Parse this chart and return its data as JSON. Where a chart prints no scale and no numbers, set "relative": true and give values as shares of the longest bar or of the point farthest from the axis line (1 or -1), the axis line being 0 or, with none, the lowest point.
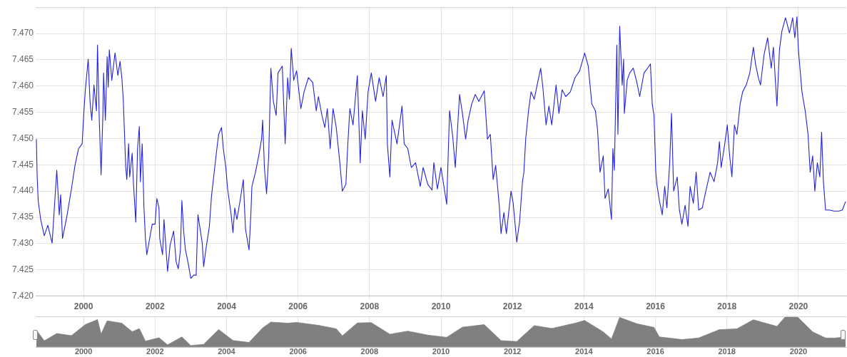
{
  "chart_data": [
    {
      "type": "line",
      "xlim": [
        1998.66,
        2021.34
      ],
      "xticks": [
        2000,
        2002,
        2004,
        2006,
        2008,
        2010,
        2012,
        2014,
        2016,
        2018,
        2020
      ],
      "ylim": [
        7.42,
        7.475
      ],
      "yticks": [
        {
          "value": 7.42,
          "label": "7.420"
        },
        {
          "value": 7.425,
          "label": "7.425"
        },
        {
          "value": 7.43,
          "label": "7.430"
        },
        {
          "value": 7.435,
          "label": "7.435"
        },
        {
          "value": 7.44,
          "label": "7.440"
        },
        {
          "value": 7.445,
          "label": "7.445"
        },
        {
          "value": 7.45,
          "label": "7.450"
        },
        {
          "value": 7.455,
          "label": "7.455"
        },
        {
          "value": 7.46,
          "label": "7.460"
        },
        {
          "value": 7.465,
          "label": "7.465"
        },
        {
          "value": 7.47,
          "label": "7.470"
        }
      ],
      "grid": true,
      "series": [
        {
          "color": "#2222e0",
          "x": [
            1998.68,
            1998.7,
            1998.73,
            1998.8,
            1998.9,
            1999.0,
            1999.12,
            1999.25,
            1999.32,
            1999.36,
            1999.41,
            1999.53,
            1999.66,
            1999.76,
            1999.86,
            1999.96,
            2000.01,
            2000.05,
            2000.13,
            2000.18,
            2000.23,
            2000.29,
            2000.36,
            2000.39,
            2000.44,
            2000.49,
            2000.54,
            2000.56,
            2000.61,
            2000.66,
            2000.69,
            2000.72,
            2000.79,
            2000.88,
            2000.96,
            2001.02,
            2001.07,
            2001.11,
            2001.18,
            2001.21,
            2001.26,
            2001.29,
            2001.36,
            2001.39,
            2001.44,
            2001.46,
            2001.51,
            2001.56,
            2001.59,
            2001.64,
            2001.69,
            2001.73,
            2001.77,
            2001.85,
            2001.92,
            2002.0,
            2002.05,
            2002.11,
            2002.13,
            2002.21,
            2002.25,
            2002.35,
            2002.42,
            2002.52,
            2002.59,
            2002.65,
            2002.71,
            2002.75,
            2002.8,
            2002.85,
            2002.92,
            2003.0,
            2003.08,
            2003.15,
            2003.2,
            2003.25,
            2003.32,
            2003.36,
            2003.42,
            2003.52,
            2003.58,
            2003.67,
            2003.73,
            2003.78,
            2003.86,
            2003.91,
            2003.98,
            2004.03,
            2004.13,
            2004.18,
            2004.23,
            2004.29,
            2004.38,
            2004.47,
            2004.53,
            2004.63,
            2004.68,
            2004.71,
            2004.81,
            2004.9,
            2004.98,
            2005.01,
            2005.06,
            2005.12,
            2005.18,
            2005.24,
            2005.31,
            2005.39,
            2005.44,
            2005.56,
            2005.64,
            2005.71,
            2005.76,
            2005.81,
            2005.88,
            2005.96,
            2006.08,
            2006.17,
            2006.29,
            2006.41,
            2006.51,
            2006.57,
            2006.67,
            2006.75,
            2006.82,
            2006.9,
            2006.98,
            2007.07,
            2007.17,
            2007.24,
            2007.34,
            2007.39,
            2007.45,
            2007.54,
            2007.66,
            2007.74,
            2007.8,
            2007.88,
            2007.96,
            2008.05,
            2008.17,
            2008.27,
            2008.38,
            2008.47,
            2008.5,
            2008.57,
            2008.63,
            2008.77,
            2008.91,
            2008.97,
            2009.07,
            2009.17,
            2009.29,
            2009.42,
            2009.5,
            2009.63,
            2009.75,
            2009.8,
            2009.9,
            2010.0,
            2010.16,
            2010.24,
            2010.33,
            2010.4,
            2010.52,
            2010.6,
            2010.69,
            2010.76,
            2010.86,
            2010.96,
            2011.06,
            2011.21,
            2011.3,
            2011.38,
            2011.46,
            2011.53,
            2011.63,
            2011.68,
            2011.76,
            2011.83,
            2011.96,
            2012.02,
            2012.12,
            2012.2,
            2012.28,
            2012.32,
            2012.37,
            2012.45,
            2012.52,
            2012.61,
            2012.69,
            2012.79,
            2012.85,
            2012.94,
            2013.02,
            2013.1,
            2013.22,
            2013.3,
            2013.39,
            2013.49,
            2013.62,
            2013.75,
            2013.88,
            2014.02,
            2014.12,
            2014.22,
            2014.32,
            2014.38,
            2014.45,
            2014.54,
            2014.59,
            2014.68,
            2014.77,
            2014.81,
            2014.85,
            2014.92,
            2014.95,
            2015.0,
            2015.07,
            2015.11,
            2015.13,
            2015.21,
            2015.28,
            2015.38,
            2015.48,
            2015.56,
            2015.68,
            2015.78,
            2015.86,
            2015.91,
            2015.96,
            2016.01,
            2016.04,
            2016.11,
            2016.19,
            2016.26,
            2016.32,
            2016.4,
            2016.45,
            2016.51,
            2016.61,
            2016.67,
            2016.74,
            2016.83,
            2016.91,
            2016.97,
            2017.06,
            2017.14,
            2017.21,
            2017.31,
            2017.41,
            2017.53,
            2017.64,
            2017.74,
            2017.79,
            2017.84,
            2017.94,
            2018.01,
            2018.07,
            2018.14,
            2018.21,
            2018.28,
            2018.37,
            2018.44,
            2018.54,
            2018.64,
            2018.74,
            2018.8,
            2018.88,
            2018.94,
            2019.04,
            2019.14,
            2019.24,
            2019.3,
            2019.4,
            2019.47,
            2019.54,
            2019.64,
            2019.75,
            2019.84,
            2019.9,
            2019.96,
            2020.0,
            2020.1,
            2020.19,
            2020.27,
            2020.33,
            2020.4,
            2020.46,
            2020.53,
            2020.6,
            2020.65,
            2020.7,
            2020.76,
            2020.86,
            2021.0,
            2021.13,
            2021.23,
            2021.32
          ],
          "values": [
            7.4499,
            7.4431,
            7.4382,
            7.4346,
            7.4315,
            7.4335,
            7.4301,
            7.444,
            7.4355,
            7.4393,
            7.431,
            7.4351,
            7.4404,
            7.4449,
            7.4481,
            7.449,
            7.4553,
            7.4593,
            7.4651,
            7.4571,
            7.4535,
            7.4602,
            7.4553,
            7.4678,
            7.4535,
            7.4431,
            7.4544,
            7.4625,
            7.4535,
            7.4656,
            7.4598,
            7.4669,
            7.4611,
            7.4663,
            7.462,
            7.4647,
            7.4616,
            7.4575,
            7.4445,
            7.4422,
            7.449,
            7.4427,
            7.4472,
            7.4422,
            7.4364,
            7.4341,
            7.4481,
            7.4523,
            7.4418,
            7.449,
            7.4368,
            7.431,
            7.4279,
            7.431,
            7.4337,
            7.4337,
            7.4386,
            7.4368,
            7.431,
            7.4279,
            7.4346,
            7.4247,
            7.4297,
            7.4324,
            7.4265,
            7.4252,
            7.4288,
            7.4382,
            7.4324,
            7.4288,
            7.4265,
            7.4234,
            7.424,
            7.424,
            7.4355,
            7.4333,
            7.4301,
            7.4256,
            7.4288,
            7.4333,
            7.4391,
            7.4445,
            7.4481,
            7.4508,
            7.4521,
            7.4481,
            7.4445,
            7.4404,
            7.4355,
            7.4321,
            7.4368,
            7.4346,
            7.4382,
            7.4422,
            7.4328,
            7.4288,
            7.4355,
            7.4409,
            7.4436,
            7.4467,
            7.4499,
            7.4535,
            7.4445,
            7.4395,
            7.4467,
            7.4634,
            7.4571,
            7.4544,
            7.4625,
            7.4638,
            7.449,
            7.4616,
            7.4575,
            7.4672,
            7.4611,
            7.4629,
            7.4557,
            7.4589,
            7.4616,
            7.4607,
            7.4553,
            7.458,
            7.4544,
            7.4521,
            7.4557,
            7.4481,
            7.4557,
            7.4521,
            7.4454,
            7.44,
            7.4413,
            7.4485,
            7.4557,
            7.4526,
            7.462,
            7.4454,
            7.4553,
            7.4499,
            7.4589,
            7.4625,
            7.4571,
            7.4616,
            7.458,
            7.462,
            7.449,
            7.4427,
            7.4535,
            7.449,
            7.4562,
            7.449,
            7.4481,
            7.4445,
            7.4454,
            7.4409,
            7.4445,
            7.4413,
            7.4402,
            7.4454,
            7.4404,
            7.4445,
            7.4375,
            7.4553,
            7.4503,
            7.4445,
            7.4584,
            7.4548,
            7.4499,
            7.4535,
            7.4566,
            7.4584,
            7.4571,
            7.4591,
            7.4499,
            7.4508,
            7.4422,
            7.4449,
            7.4373,
            7.4319,
            7.4359,
            7.4319,
            7.44,
            7.4377,
            7.4303,
            7.4342,
            7.4418,
            7.4436,
            7.4499,
            7.4553,
            7.4589,
            7.4575,
            7.4602,
            7.4634,
            7.4598,
            7.4526,
            7.4562,
            7.4526,
            7.4602,
            7.4548,
            7.4593,
            7.458,
            7.4589,
            7.4616,
            7.4629,
            7.4663,
            7.4638,
            7.4566,
            7.4553,
            7.4517,
            7.4436,
            7.4467,
            7.4386,
            7.4404,
            7.4346,
            7.4481,
            7.444,
            7.4678,
            7.4508,
            7.4714,
            7.4602,
            7.4651,
            7.4548,
            7.4611,
            7.4625,
            7.4634,
            7.4607,
            7.458,
            7.4625,
            7.4634,
            7.4642,
            7.4566,
            7.4544,
            7.4436,
            7.4413,
            7.4382,
            7.4355,
            7.4409,
            7.4368,
            7.4454,
            7.4548,
            7.44,
            7.4427,
            7.4364,
            7.4337,
            7.4373,
            7.4333,
            7.4409,
            7.4377,
            7.4436,
            7.4364,
            7.4368,
            7.44,
            7.4436,
            7.4418,
            7.4454,
            7.4494,
            7.4445,
            7.449,
            7.4526,
            7.4472,
            7.4427,
            7.4526,
            7.4508,
            7.4566,
            7.4589,
            7.4602,
            7.4625,
            7.4674,
            7.4642,
            7.4616,
            7.4602,
            7.466,
            7.4692,
            7.4634,
            7.4674,
            7.4562,
            7.4669,
            7.4705,
            7.473,
            7.4701,
            7.473,
            7.4692,
            7.4732,
            7.4669,
            7.4589,
            7.4553,
            7.4508,
            7.4436,
            7.4467,
            7.44,
            7.4454,
            7.4427,
            7.4512,
            7.4418,
            7.4364,
            7.4364,
            7.4362,
            7.4362,
            7.4364,
            7.438
          ]
        }
      ]
    },
    {
      "type": "area",
      "relative": true,
      "xlim": [
        1998.66,
        2021.34
      ],
      "xticks": [
        2000,
        2002,
        2004,
        2006,
        2008,
        2010,
        2012,
        2014,
        2016,
        2018,
        2020
      ],
      "tick_labels": "x",
      "grid": "x",
      "series": [
        {
          "color": "#808080",
          "x": [
            1998.68,
            1998.9,
            1999.25,
            1999.66,
            2000.05,
            2000.39,
            2000.49,
            2000.66,
            2001.07,
            2001.36,
            2001.56,
            2001.73,
            2002.11,
            2002.35,
            2002.75,
            2003.0,
            2003.36,
            2003.78,
            2004.18,
            2004.63,
            2005.01,
            2005.24,
            2005.71,
            2005.96,
            2006.57,
            2007.07,
            2007.24,
            2007.66,
            2008.05,
            2008.57,
            2009.07,
            2009.63,
            2010.16,
            2010.6,
            2011.21,
            2011.68,
            2012.12,
            2012.61,
            2013.1,
            2013.75,
            2014.02,
            2014.54,
            2014.77,
            2015.0,
            2015.48,
            2015.96,
            2016.11,
            2016.74,
            2017.21,
            2017.79,
            2018.28,
            2018.74,
            2019.4,
            2019.64,
            2019.96,
            2020.4,
            2020.76,
            2021.0,
            2021.32
          ],
          "values": [
            0.562,
            0.216,
            0.451,
            0.383,
            0.739,
            0.898,
            0.434,
            0.857,
            0.782,
            0.511,
            0.607,
            0.207,
            0.316,
            0.088,
            0.342,
            0.064,
            0.105,
            0.579,
            0.227,
            0.165,
            0.63,
            0.816,
            0.782,
            0.806,
            0.714,
            0.603,
            0.376,
            0.789,
            0.799,
            0.427,
            0.528,
            0.4,
            0.329,
            0.654,
            0.735,
            0.224,
            0.194,
            0.705,
            0.613,
            0.782,
            0.87,
            0.502,
            0.274,
            0.966,
            0.765,
            0.647,
            0.342,
            0.258,
            0.308,
            0.575,
            0.602,
            0.891,
            0.68,
            0.996,
            1,
            0.502,
            0.308,
            0.305,
            0.338
          ]
        }
      ]
    }
  ]
}
